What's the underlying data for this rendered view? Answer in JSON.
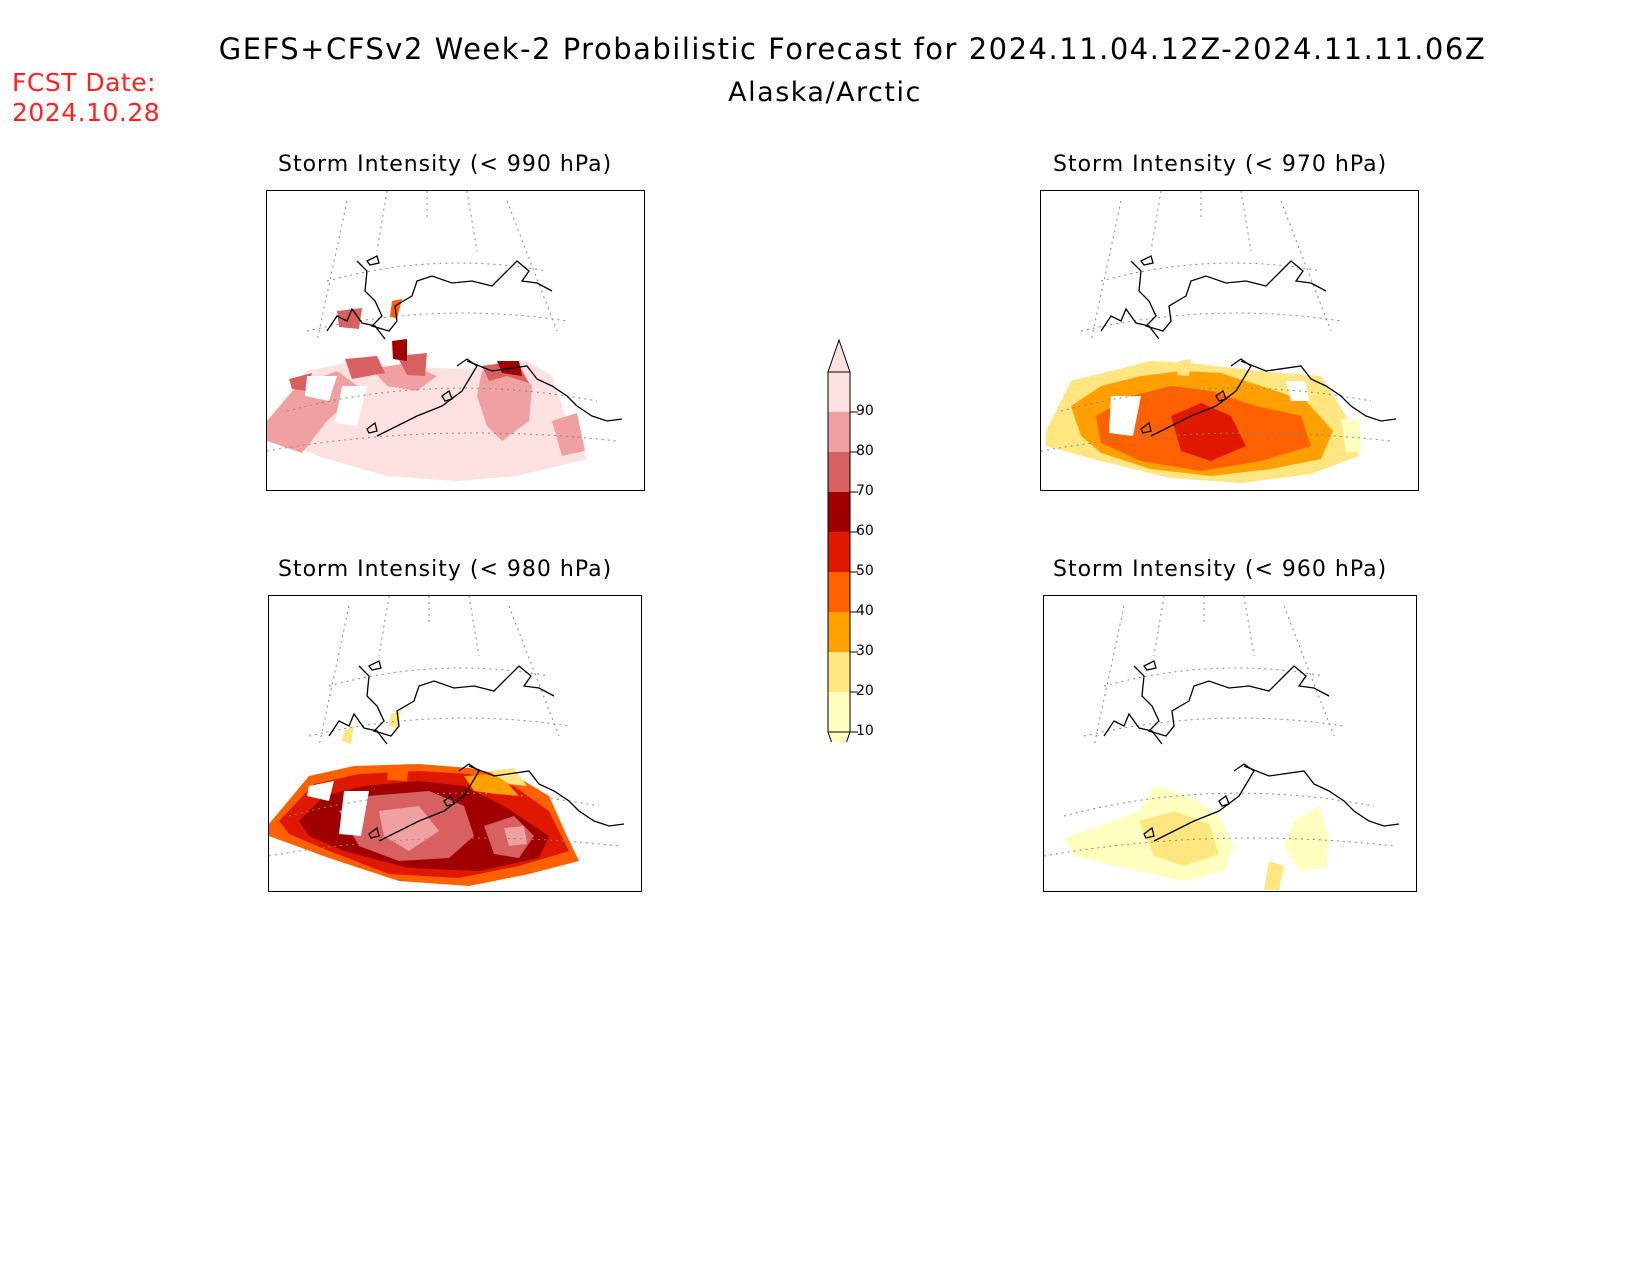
{
  "header": {
    "title": "GEFS+CFSv2 Week-2 Probabilistic Forecast for 2024.11.04.12Z-2024.11.11.06Z",
    "region": "Alaska/Arctic",
    "fcst_label": "FCST Date:",
    "fcst_date": "2024.10.28"
  },
  "panels": [
    {
      "title": "Storm Intensity (< 990 hPa)"
    },
    {
      "title": "Storm Intensity (< 970 hPa)"
    },
    {
      "title": "Storm Intensity (< 980 hPa)"
    },
    {
      "title": "Storm Intensity (< 960 hPa)"
    }
  ],
  "legend": {
    "levels": [
      "10",
      "20",
      "30",
      "40",
      "50",
      "60",
      "70",
      "80",
      "90"
    ],
    "colors": [
      "#ffffc0",
      "#ffe680",
      "#ffa000",
      "#ff6000",
      "#e01800",
      "#a00000",
      "#d86060",
      "#f0a0a0",
      "#fde0e0"
    ]
  }
}
